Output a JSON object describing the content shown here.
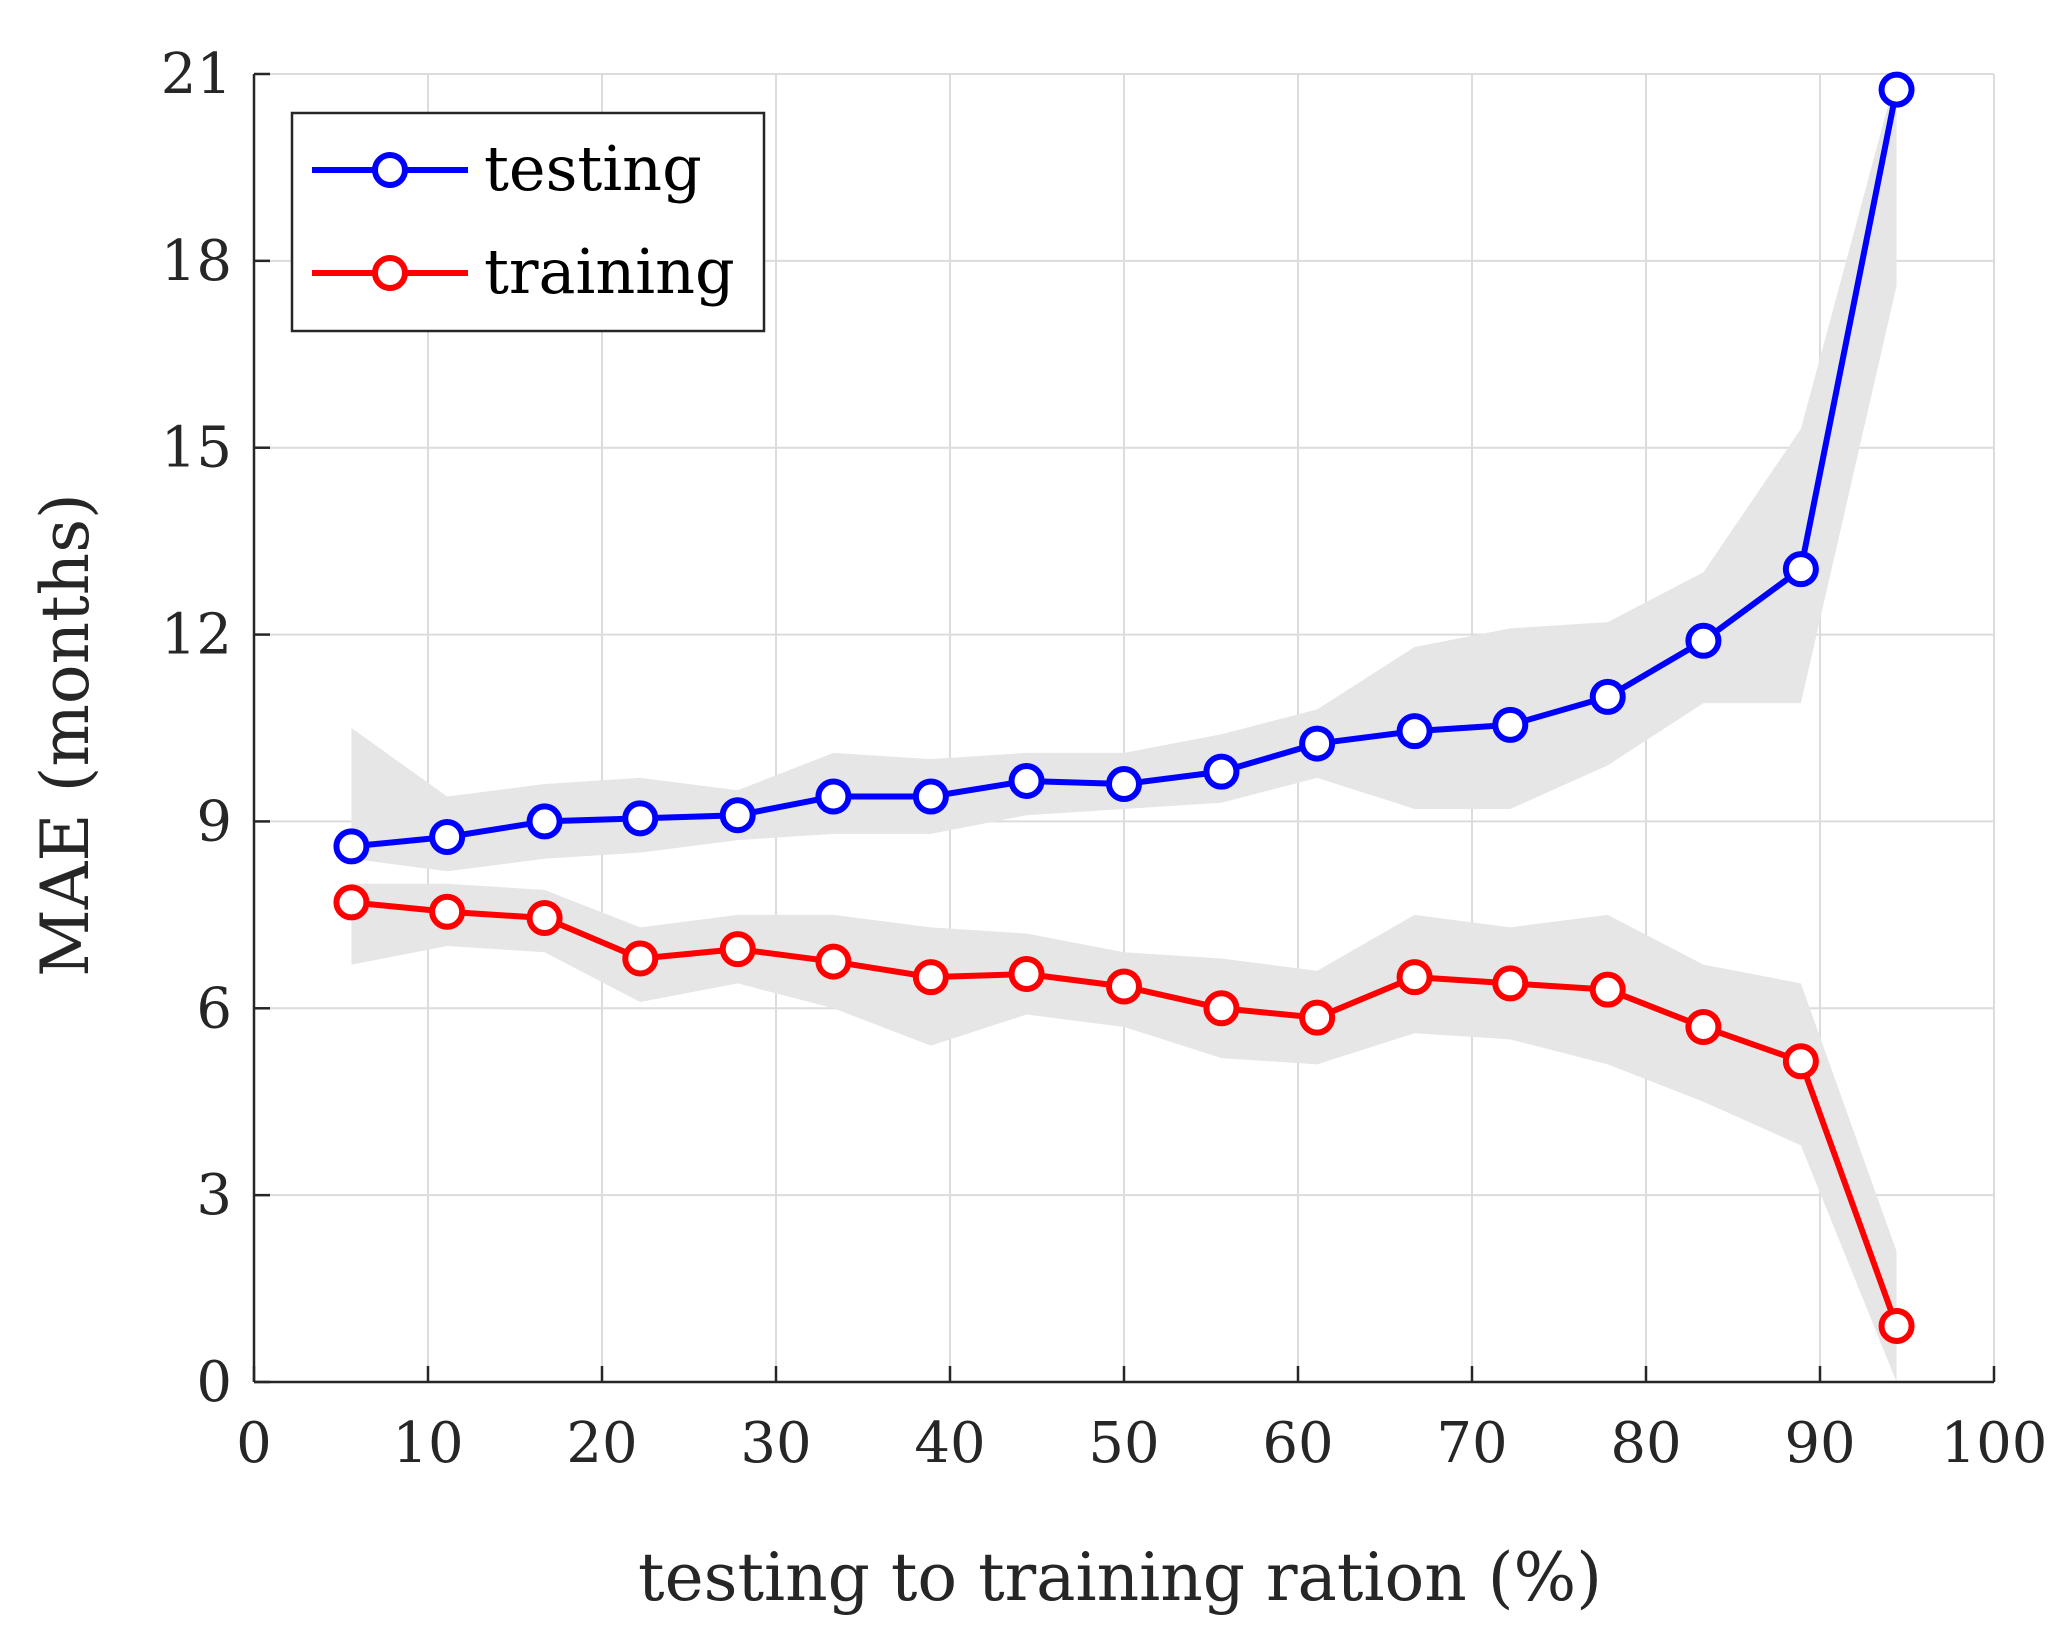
{
  "chart_data": {
    "type": "line",
    "title": "",
    "xlabel": "testing to training ration (%)",
    "ylabel": "MAE (months)",
    "xlim": [
      0,
      100
    ],
    "ylim": [
      0,
      21
    ],
    "xticks": [
      0,
      10,
      20,
      30,
      40,
      50,
      60,
      70,
      80,
      90,
      100
    ],
    "yticks": [
      0,
      3,
      6,
      9,
      12,
      15,
      18,
      21
    ],
    "xtick_labels": [
      "0",
      "10",
      "20",
      "30",
      "40",
      "50",
      "60",
      "70",
      "80",
      "90",
      "100"
    ],
    "ytick_labels": [
      "0",
      "3",
      "6",
      "9",
      "12",
      "15",
      "18",
      "21"
    ],
    "grid": true,
    "legend_position": "top-left",
    "x": [
      5.6,
      11.1,
      16.7,
      22.2,
      27.8,
      33.3,
      38.9,
      44.4,
      50.0,
      55.6,
      61.1,
      66.7,
      72.2,
      77.8,
      83.3,
      88.9,
      94.4
    ],
    "series": [
      {
        "name": "testing",
        "color": "#0000ff",
        "values": [
          8.6,
          8.75,
          9.0,
          9.05,
          9.1,
          9.4,
          9.4,
          9.65,
          9.6,
          9.8,
          10.25,
          10.45,
          10.55,
          11.0,
          11.9,
          13.05,
          20.75
        ],
        "band_lower": [
          8.4,
          8.2,
          8.4,
          8.5,
          8.7,
          8.8,
          8.8,
          9.1,
          9.2,
          9.3,
          9.7,
          9.2,
          9.2,
          9.9,
          10.9,
          10.9,
          17.6
        ],
        "band_upper": [
          10.5,
          9.4,
          9.6,
          9.7,
          9.5,
          10.1,
          10.0,
          10.1,
          10.1,
          10.4,
          10.8,
          11.8,
          12.1,
          12.2,
          13.0,
          15.3,
          21.0
        ]
      },
      {
        "name": "training",
        "color": "#ff0000",
        "values": [
          7.7,
          7.55,
          7.45,
          6.8,
          6.95,
          6.75,
          6.5,
          6.55,
          6.35,
          6.0,
          5.85,
          6.5,
          6.4,
          6.3,
          5.7,
          5.15,
          0.9
        ],
        "band_lower": [
          6.7,
          7.0,
          6.9,
          6.1,
          6.4,
          6.0,
          5.4,
          5.9,
          5.7,
          5.2,
          5.1,
          5.6,
          5.5,
          5.1,
          4.5,
          3.8,
          0.0
        ],
        "band_upper": [
          8.0,
          8.0,
          7.9,
          7.3,
          7.5,
          7.5,
          7.3,
          7.2,
          6.9,
          6.8,
          6.6,
          7.5,
          7.3,
          7.5,
          6.7,
          6.4,
          2.1
        ]
      }
    ],
    "band_color": "#e6e6e6"
  }
}
